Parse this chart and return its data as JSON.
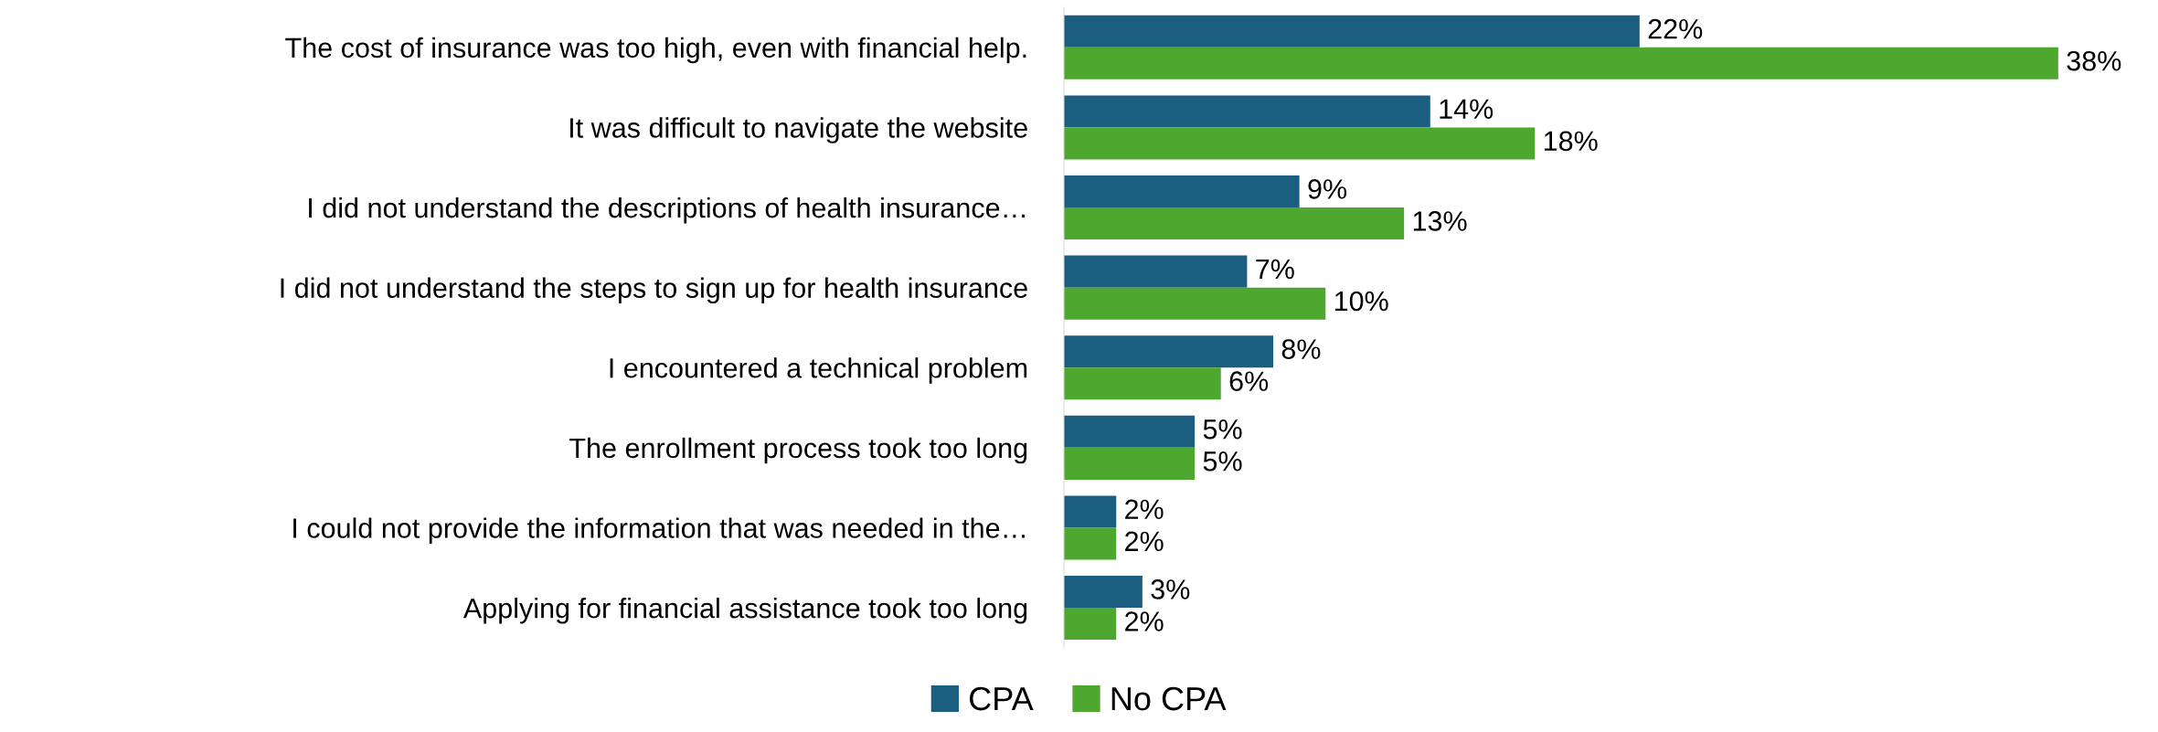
{
  "chart_data": {
    "type": "bar",
    "orientation": "horizontal",
    "tick_labels": "y",
    "grid": false,
    "legend": "bottom",
    "categories": [
      "The cost of insurance was too high, even with financial help.",
      "It was difficult to navigate the website",
      "I did not understand the descriptions of health insurance…",
      "I did not understand the steps to sign up for health insurance",
      "I encountered a technical problem",
      "The enrollment process took too long",
      "I could not provide the information that was needed in the…",
      "Applying for financial assistance took too long"
    ],
    "series": [
      {
        "name": "CPA",
        "color": "#1b5e80",
        "values": [
          22,
          14,
          9,
          7,
          8,
          5,
          2,
          3
        ],
        "value_labels": [
          "22%",
          "14%",
          "9%",
          "7%",
          "8%",
          "5%",
          "2%",
          "3%"
        ]
      },
      {
        "name": "No CPA",
        "color": "#4ea72e",
        "values": [
          38,
          18,
          13,
          10,
          6,
          5,
          2,
          2
        ],
        "value_labels": [
          "38%",
          "18%",
          "13%",
          "10%",
          "6%",
          "5%",
          "2%",
          "2%"
        ]
      }
    ]
  }
}
